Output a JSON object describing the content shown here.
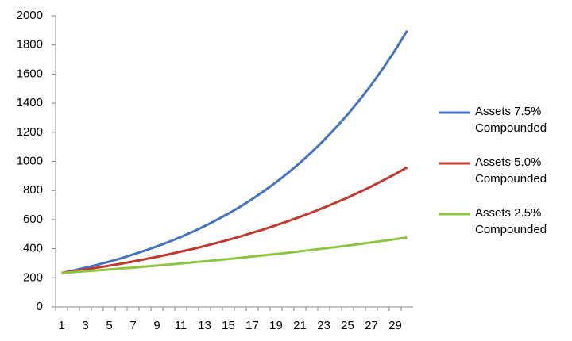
{
  "chart_data": {
    "type": "line",
    "categories": [
      1,
      null,
      3,
      null,
      5,
      null,
      7,
      null,
      9,
      null,
      11,
      null,
      13,
      null,
      15,
      null,
      17,
      null,
      19,
      null,
      21,
      null,
      23,
      null,
      25,
      null,
      27,
      null,
      29,
      null
    ],
    "series": [
      {
        "name": "Assets 7.5% Compounded",
        "color": "#4472c4",
        "values": [
          233,
          250,
          269,
          289,
          311,
          334,
          360,
          387,
          416,
          447,
          480,
          516,
          555,
          597,
          641,
          689,
          741,
          797,
          856,
          921,
          990,
          1064,
          1144,
          1230,
          1322,
          1421,
          1527,
          1642,
          1765,
          1898
        ]
      },
      {
        "name": "Assets 5.0% Compounded",
        "color": "#c0392b",
        "values": [
          233,
          245,
          257,
          270,
          283,
          297,
          312,
          328,
          344,
          361,
          380,
          398,
          418,
          439,
          461,
          484,
          509,
          534,
          561,
          589,
          618,
          649,
          682,
          716,
          751,
          789,
          828,
          870,
          913,
          959
        ]
      },
      {
        "name": "Assets 2.5% Compounded",
        "color": "#8cc63f",
        "values": [
          233,
          239,
          245,
          251,
          257,
          264,
          270,
          277,
          284,
          291,
          298,
          306,
          313,
          321,
          329,
          337,
          346,
          355,
          363,
          372,
          382,
          391,
          401,
          411,
          421,
          432,
          443,
          454,
          465,
          477
        ]
      }
    ],
    "ylim": [
      0,
      2000
    ],
    "yticks": [
      0,
      200,
      400,
      600,
      800,
      1000,
      1200,
      1400,
      1600,
      1800,
      2000
    ],
    "grid": false,
    "legend": "right"
  }
}
